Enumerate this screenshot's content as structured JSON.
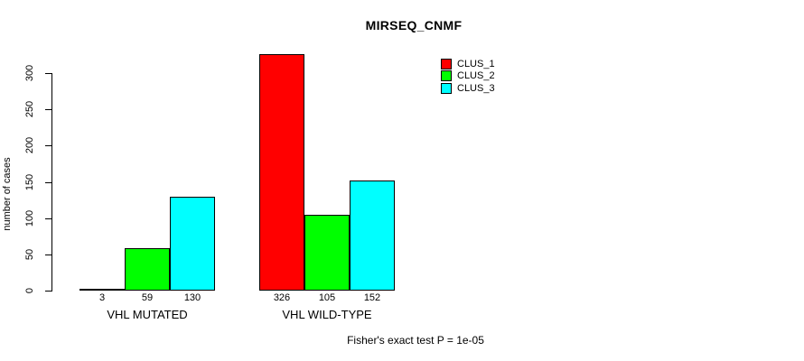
{
  "title": "MIRSEQ_CNMF",
  "footer": "Fisher's exact test P = 1e-05",
  "chart_data": {
    "type": "bar",
    "grouped": true,
    "categories": [
      "VHL MUTATED",
      "VHL WILD-TYPE"
    ],
    "series": [
      {
        "name": "CLUS_1",
        "color": "#FF0000",
        "values": [
          3,
          326
        ]
      },
      {
        "name": "CLUS_2",
        "color": "#00FF00",
        "values": [
          59,
          105
        ]
      },
      {
        "name": "CLUS_3",
        "color": "#00FFFF",
        "values": [
          130,
          152
        ]
      }
    ],
    "bar_value_labels": [
      [
        3,
        59,
        130
      ],
      [
        326,
        105,
        152
      ]
    ],
    "title": "MIRSEQ_CNMF",
    "xlabel": "",
    "ylabel": "number of cases",
    "yticks": [
      0,
      50,
      100,
      150,
      200,
      250,
      300
    ],
    "ylim": [
      0,
      300
    ],
    "grid": false,
    "legend_position": "top-right",
    "annotation": "Fisher's exact test P = 1e-05",
    "colors": {
      "axis": "#000000",
      "background": "#ffffff"
    }
  }
}
